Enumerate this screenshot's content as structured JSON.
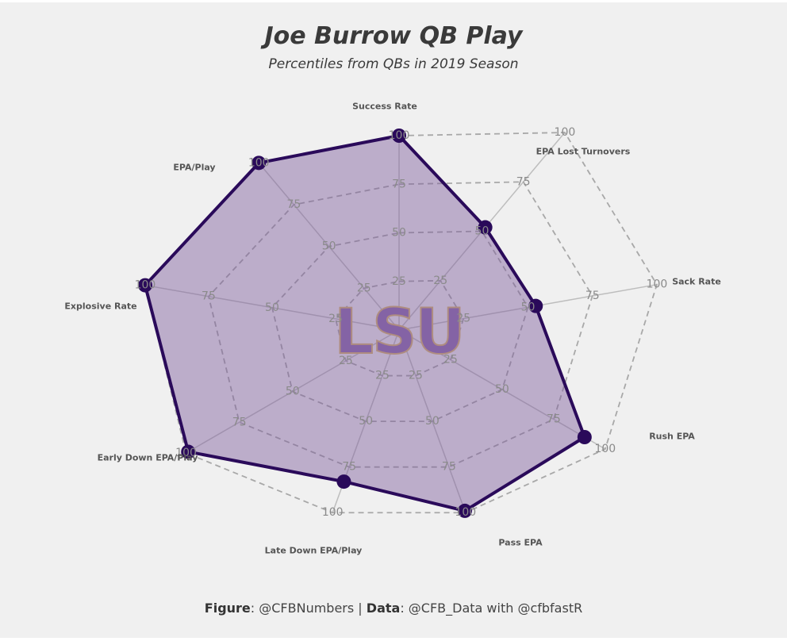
{
  "title": "Joe Burrow QB Play",
  "subtitle": "Percentiles from QBs in 2019 Season",
  "footer": {
    "figure_label": "Figure",
    "figure_value": ": @CFBNumbers | ",
    "data_label": "Data",
    "data_value": ": @CFB_Data with @cfbfastR"
  },
  "logo_text": "LSU",
  "colors": {
    "background": "#f0f0f0",
    "series_line": "#2a0a5a",
    "series_fill": "#7c5a9c",
    "logo_fill": "#8a6aad",
    "logo_outline": "#d8b56a"
  },
  "chart_data": {
    "type": "radar",
    "categories": [
      "Success Rate",
      "EPA Lost Turnovers",
      "Sack Rate",
      "Rush EPA",
      "Pass EPA",
      "Late Down EPA/Play",
      "Early Down EPA/Play",
      "Explosive Rate",
      "EPA/Play"
    ],
    "series": [
      {
        "values": [
          100,
          52,
          53,
          90,
          99,
          83,
          99,
          100,
          100
        ]
      }
    ],
    "r_range": [
      0,
      100
    ],
    "ticks": [
      25,
      50,
      75,
      100
    ],
    "grid": true,
    "gridline_style": "dashed"
  }
}
